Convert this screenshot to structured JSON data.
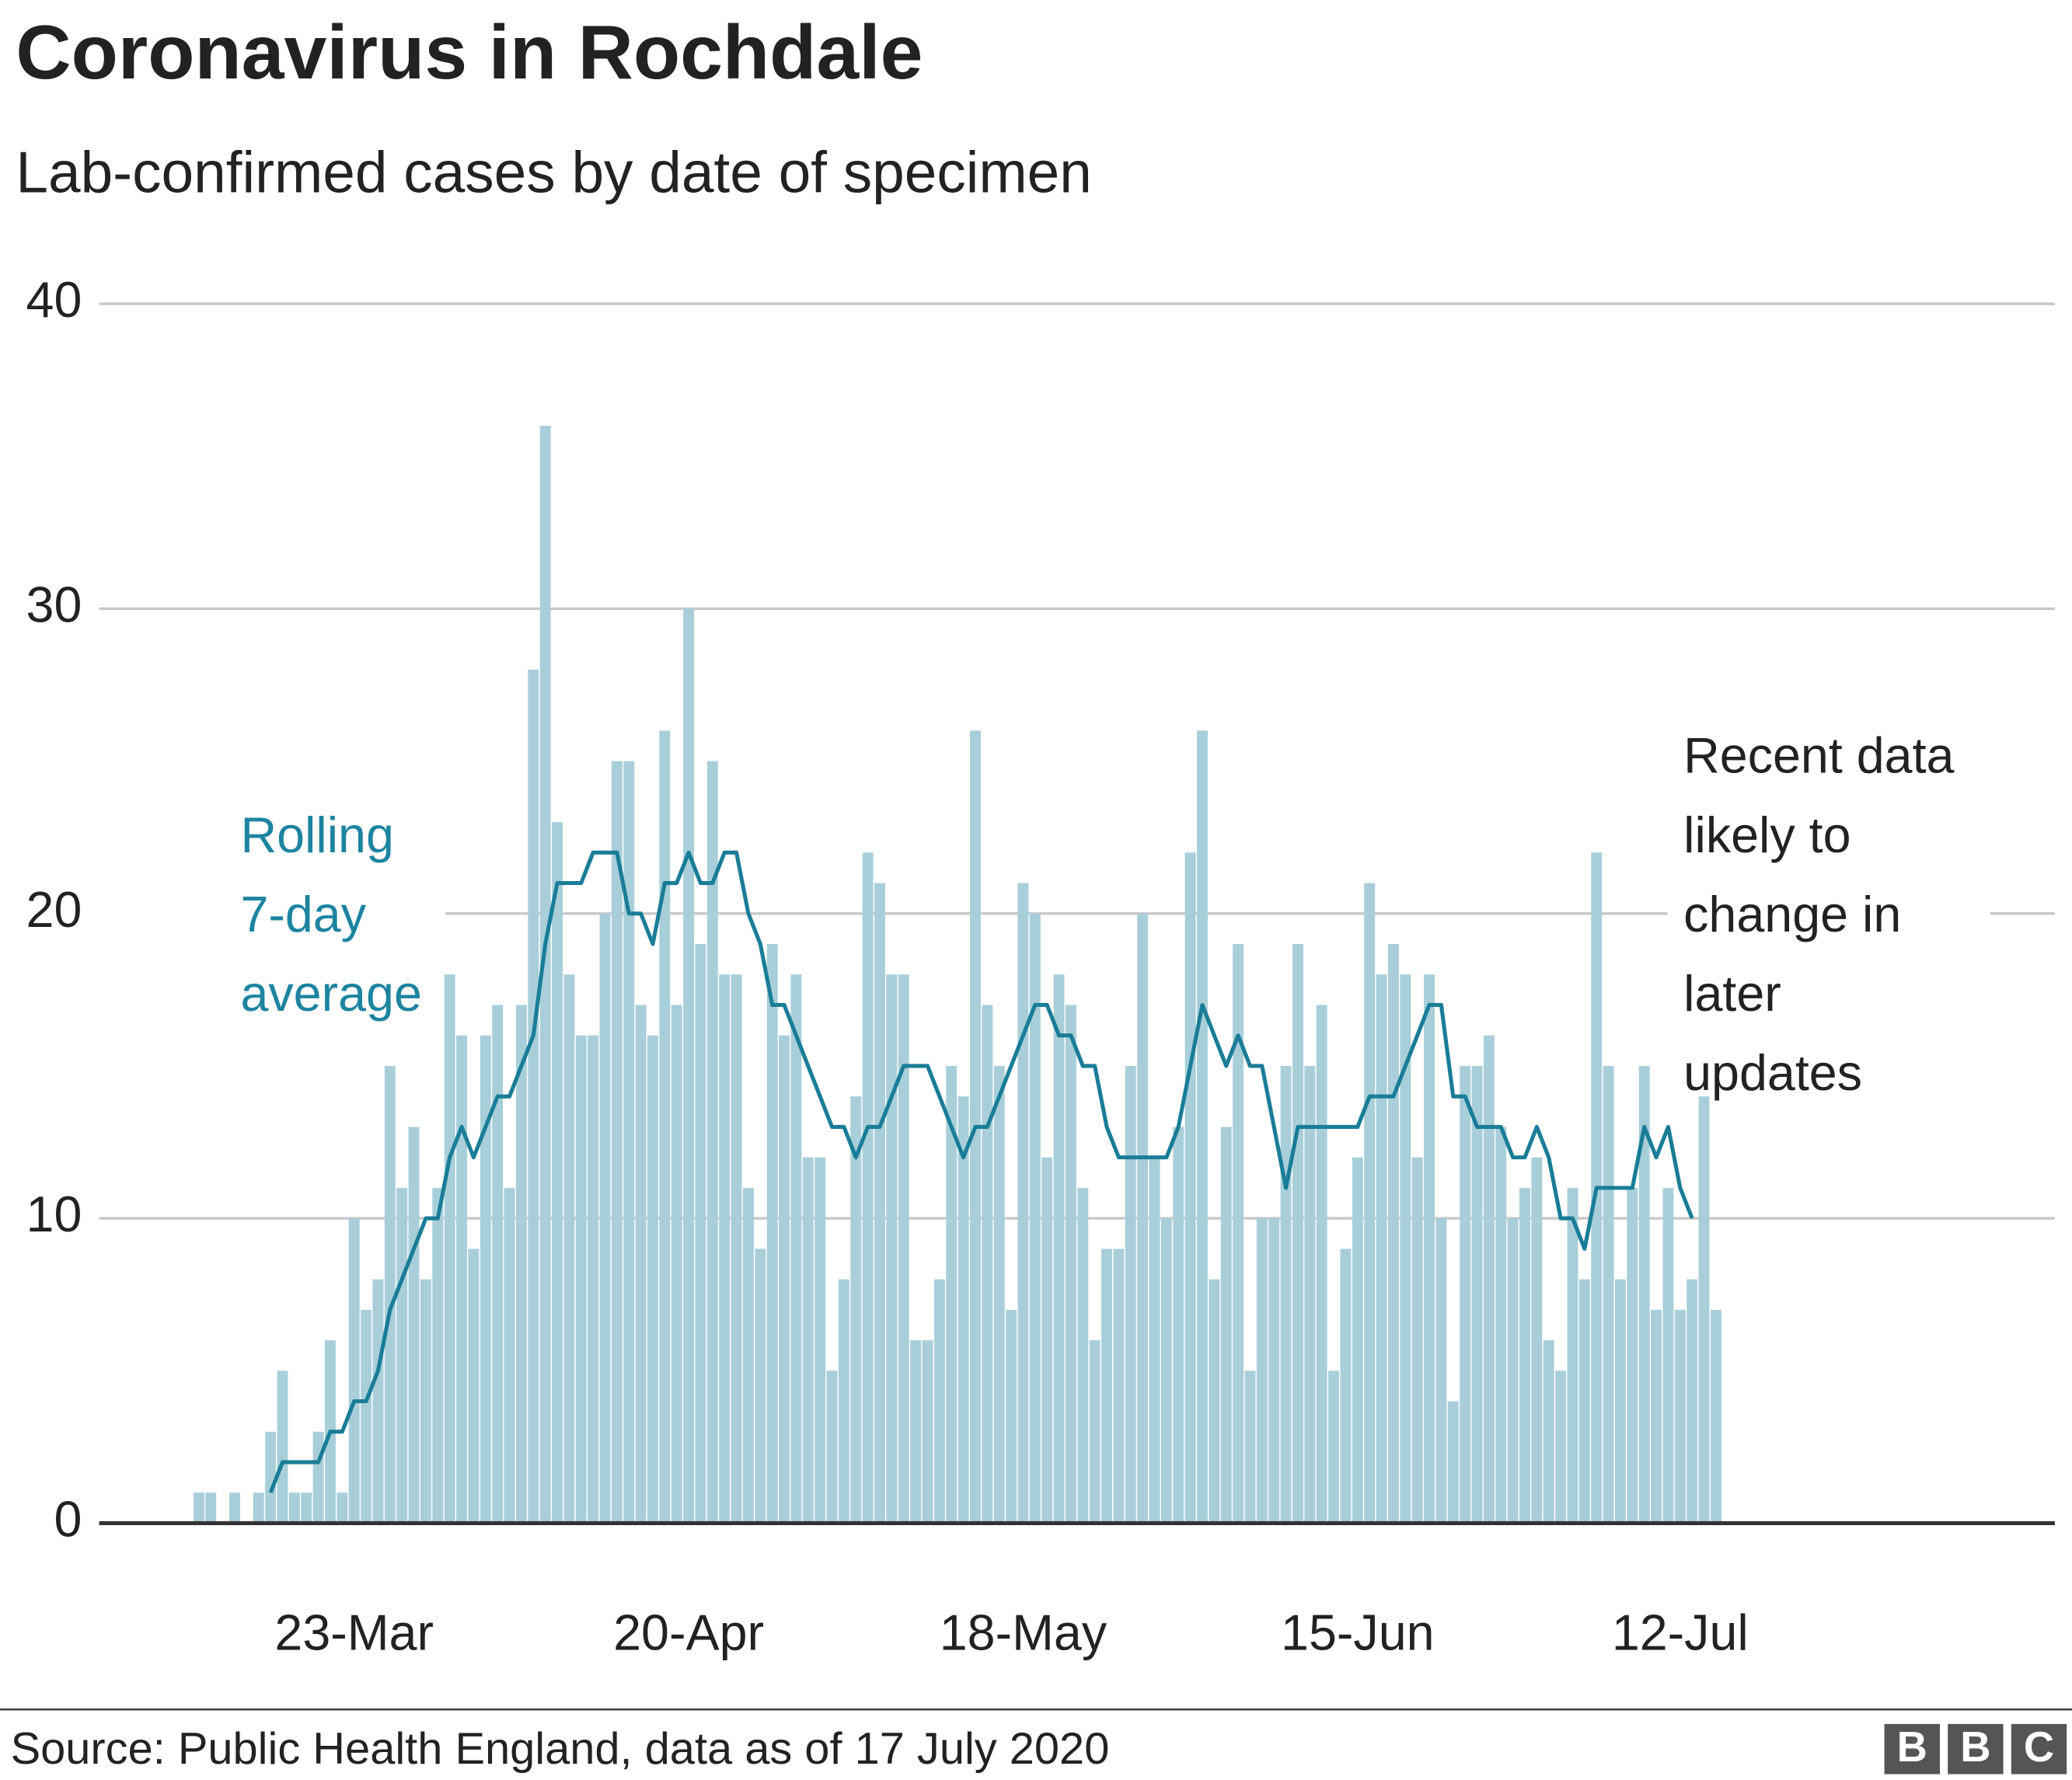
{
  "chart_data": {
    "type": "bar",
    "title": "Coronavirus in Rochdale",
    "subtitle": "Lab-confirmed cases by date of specimen",
    "categories": [
      null,
      null,
      null,
      null,
      null,
      null,
      null,
      null,
      null,
      null,
      null,
      null,
      null,
      "23-Mar",
      null,
      null,
      null,
      null,
      null,
      null,
      null,
      null,
      null,
      null,
      null,
      null,
      null,
      null,
      null,
      null,
      null,
      null,
      null,
      null,
      null,
      null,
      null,
      null,
      null,
      null,
      null,
      "20-Apr",
      null,
      null,
      null,
      null,
      null,
      null,
      null,
      null,
      null,
      null,
      null,
      null,
      null,
      null,
      null,
      null,
      null,
      null,
      null,
      null,
      null,
      null,
      null,
      null,
      null,
      null,
      null,
      "18-May",
      null,
      null,
      null,
      null,
      null,
      null,
      null,
      null,
      null,
      null,
      null,
      null,
      null,
      null,
      null,
      null,
      null,
      null,
      null,
      null,
      null,
      null,
      null,
      null,
      null,
      null,
      null,
      "15-Jun",
      null,
      null,
      null,
      null,
      null,
      null,
      null,
      null,
      null,
      null,
      null,
      null,
      null,
      null,
      null,
      null,
      null,
      null,
      null,
      null,
      null,
      null,
      null,
      null,
      null,
      null,
      "12-Jul",
      null,
      null,
      null
    ],
    "series": [
      {
        "type": "bar",
        "color": "#a8cfd9",
        "values": [
          1,
          1,
          0,
          1,
          0,
          1,
          3,
          5,
          1,
          1,
          3,
          6,
          1,
          10,
          7,
          8,
          15,
          11,
          13,
          8,
          11,
          18,
          16,
          9,
          16,
          17,
          11,
          17,
          28,
          36,
          23,
          18,
          16,
          16,
          20,
          25,
          25,
          17,
          16,
          26,
          17,
          30,
          19,
          25,
          18,
          18,
          11,
          9,
          19,
          16,
          18,
          12,
          12,
          5,
          8,
          14,
          22,
          21,
          18,
          18,
          6,
          6,
          8,
          15,
          14,
          26,
          17,
          15,
          7,
          21,
          20,
          12,
          18,
          17,
          11,
          6,
          9,
          9,
          15,
          20,
          12,
          10,
          13,
          22,
          26,
          8,
          13,
          19,
          5,
          10,
          10,
          15,
          19,
          15,
          17,
          5,
          9,
          12,
          21,
          18,
          19,
          18,
          12,
          18,
          10,
          4,
          15,
          15,
          16,
          13,
          10,
          11,
          12,
          6,
          5,
          11,
          8,
          22,
          15,
          8,
          11,
          15,
          7,
          11,
          7,
          8,
          14,
          7
        ]
      },
      {
        "type": "line",
        "color": "#1a7d98",
        "values": [
          null,
          null,
          null,
          null,
          null,
          null,
          1,
          2,
          2,
          2,
          2,
          3,
          3,
          4,
          4,
          5,
          7,
          8,
          9,
          10,
          10,
          12,
          13,
          12,
          13,
          14,
          14,
          15,
          16,
          19,
          21,
          21,
          21,
          22,
          22,
          22,
          20,
          20,
          19,
          21,
          21,
          22,
          21,
          21,
          22,
          22,
          20,
          19,
          17,
          17,
          16,
          15,
          14,
          13,
          13,
          12,
          13,
          13,
          14,
          15,
          15,
          15,
          14,
          13,
          12,
          13,
          13,
          14,
          15,
          16,
          17,
          17,
          16,
          16,
          15,
          15,
          13,
          12,
          12,
          12,
          12,
          12,
          13,
          15,
          17,
          16,
          15,
          16,
          15,
          15,
          13,
          11,
          13,
          13,
          13,
          13,
          13,
          13,
          14,
          14,
          14,
          15,
          16,
          17,
          17,
          14,
          14,
          13,
          13,
          13,
          12,
          12,
          13,
          12,
          10,
          10,
          9,
          11,
          11,
          11,
          11,
          13,
          12,
          13,
          11,
          10,
          null,
          null
        ]
      }
    ],
    "ylim": [
      0,
      40
    ],
    "yticks": [
      0,
      10,
      20,
      30,
      40
    ],
    "grid": true,
    "annotations": [
      {
        "lines": [
          "Rolling",
          "7-day",
          "average"
        ],
        "color": "#1d84a0"
      },
      {
        "lines": [
          "Recent data",
          "likely to",
          "change in",
          "later",
          "updates"
        ],
        "color": "#222222"
      }
    ],
    "source": "Source: Public Health England, data as of 17 July 2020",
    "logo": [
      "B",
      "B",
      "C"
    ]
  }
}
